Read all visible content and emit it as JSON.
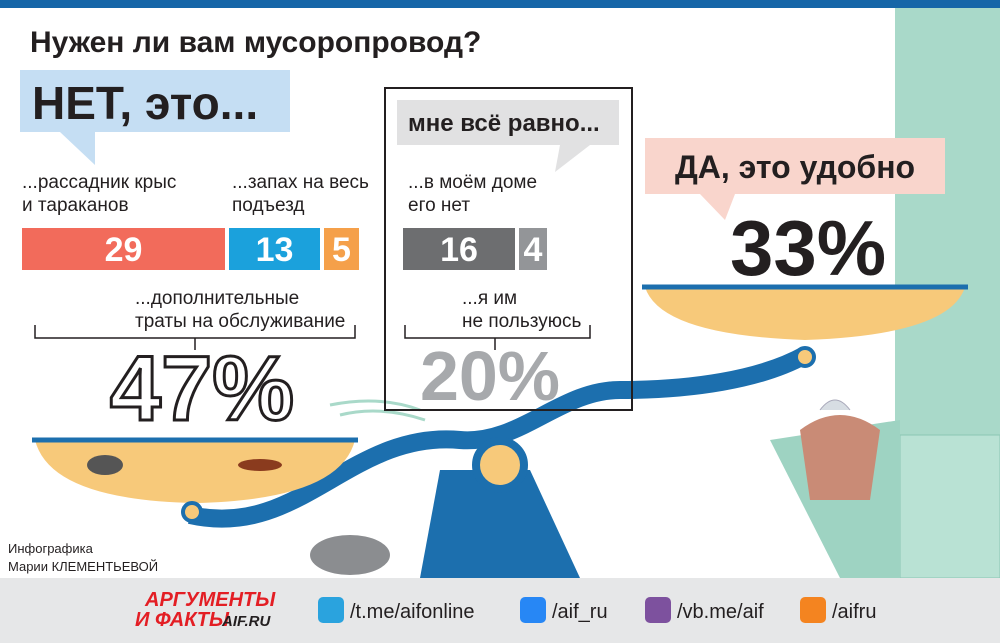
{
  "title": "Нужен ли вам мусоропровод?",
  "no": {
    "heading": "НЕТ, это...",
    "total": "47%",
    "segments": [
      {
        "label": [
          "...рассадник крыс",
          "и тараканов"
        ],
        "value": 29,
        "color": "#f26b5b"
      },
      {
        "label": [
          "...запах на весь",
          "подъезд"
        ],
        "value": 13,
        "color": "#1ba1dc"
      },
      {
        "label": [
          "...дополнительные",
          "траты на обслуживание"
        ],
        "value": 5,
        "color": "#f5a04a"
      }
    ]
  },
  "neutral": {
    "heading": "мне всё равно...",
    "total": "20%",
    "segments": [
      {
        "label": [
          "...в моём доме",
          "его нет"
        ],
        "value": 16,
        "color": "#6d6e70"
      },
      {
        "label": [
          "...я им",
          "не пользуюсь"
        ],
        "value": 4,
        "color": "#939598"
      }
    ]
  },
  "yes": {
    "heading": "ДА, это удобно",
    "total": "33%"
  },
  "credit": [
    "Инфографика",
    "Марии КЛЕМЕНТЬЕВОЙ"
  ],
  "footer": {
    "logo": [
      "АРГУМЕНТЫ",
      "И ФАКТЫ",
      "AIF.RU"
    ],
    "links": [
      "/t.me/aifonline",
      "/aif_ru",
      "/vb.me/aif",
      "/aifru"
    ]
  }
}
